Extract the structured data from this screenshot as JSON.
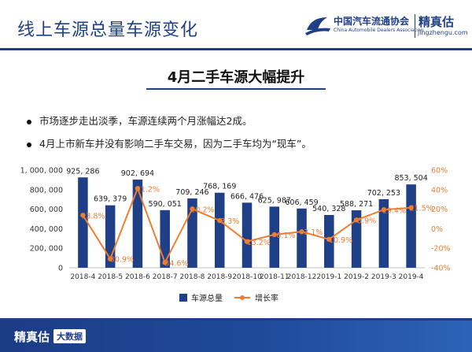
{
  "header": {
    "title": "线上车源总量车源变化",
    "association_cn": "中国汽车流通协会",
    "association_en": "China Automobile Dealers Association",
    "brand": "精真估",
    "brand_url": "jingzhengu.com"
  },
  "section_title": "4月二手车源大幅提升",
  "bullets": [
    "市场逐步走出淡季，车源连续两个月涨幅达2成。",
    "4月上市新车并没有影响二手车交易，因为二手车均为“现车”。"
  ],
  "colors": {
    "bar": "#1f3f86",
    "line": "#ed7d31",
    "accent": "#1f3f86"
  },
  "chart_data": {
    "type": "bar+line",
    "categories": [
      "2018-4",
      "2018-5",
      "2018-6",
      "2018-7",
      "2018-8",
      "2018-9",
      "2018-10",
      "2018-11",
      "2018-12",
      "2019-1",
      "2019-2",
      "2019-3",
      "2019-4"
    ],
    "series": [
      {
        "name": "车源总量",
        "type": "bar",
        "axis": "left",
        "values": [
          925286,
          639379,
          902694,
          590051,
          709246,
          768169,
          666476,
          625987,
          606459,
          540328,
          588271,
          702253,
          853504
        ],
        "labels": [
          "925, 286",
          "639, 379",
          "902, 694",
          "590, 051",
          "709, 246",
          "768, 169",
          "666, 476",
          "625, 987",
          "606, 459",
          "540, 328",
          "588, 271",
          "702, 253",
          "853, 504"
        ]
      },
      {
        "name": "增长率",
        "type": "line",
        "axis": "right",
        "values": [
          13.8,
          -30.9,
          41.2,
          -34.6,
          20.2,
          8.3,
          -13.2,
          -6.1,
          -3.1,
          -10.9,
          8.9,
          19.4,
          21.5
        ],
        "labels": [
          "13.8%",
          "-30.9%",
          "41.2%",
          "-34.6%",
          "20.2%",
          "8.3%",
          "-13.2%",
          "-6.1%",
          "-3.1%",
          "-10.9%",
          "8.9%",
          "19.4%",
          "21.5%"
        ]
      }
    ],
    "y_left": {
      "ylim": [
        0,
        1000000
      ],
      "ticks": [
        "0",
        "200, 000",
        "400, 000",
        "600, 000",
        "800, 000",
        "1, 000, 000"
      ]
    },
    "y_right": {
      "ylim": [
        -40,
        60
      ],
      "ticks": [
        "-40%",
        "-20%",
        "0%",
        "20%",
        "40%",
        "60%"
      ]
    },
    "legend_placement": "bottom-center",
    "grid": false
  },
  "footer": {
    "brand": "精真估",
    "tag": "大数据"
  }
}
